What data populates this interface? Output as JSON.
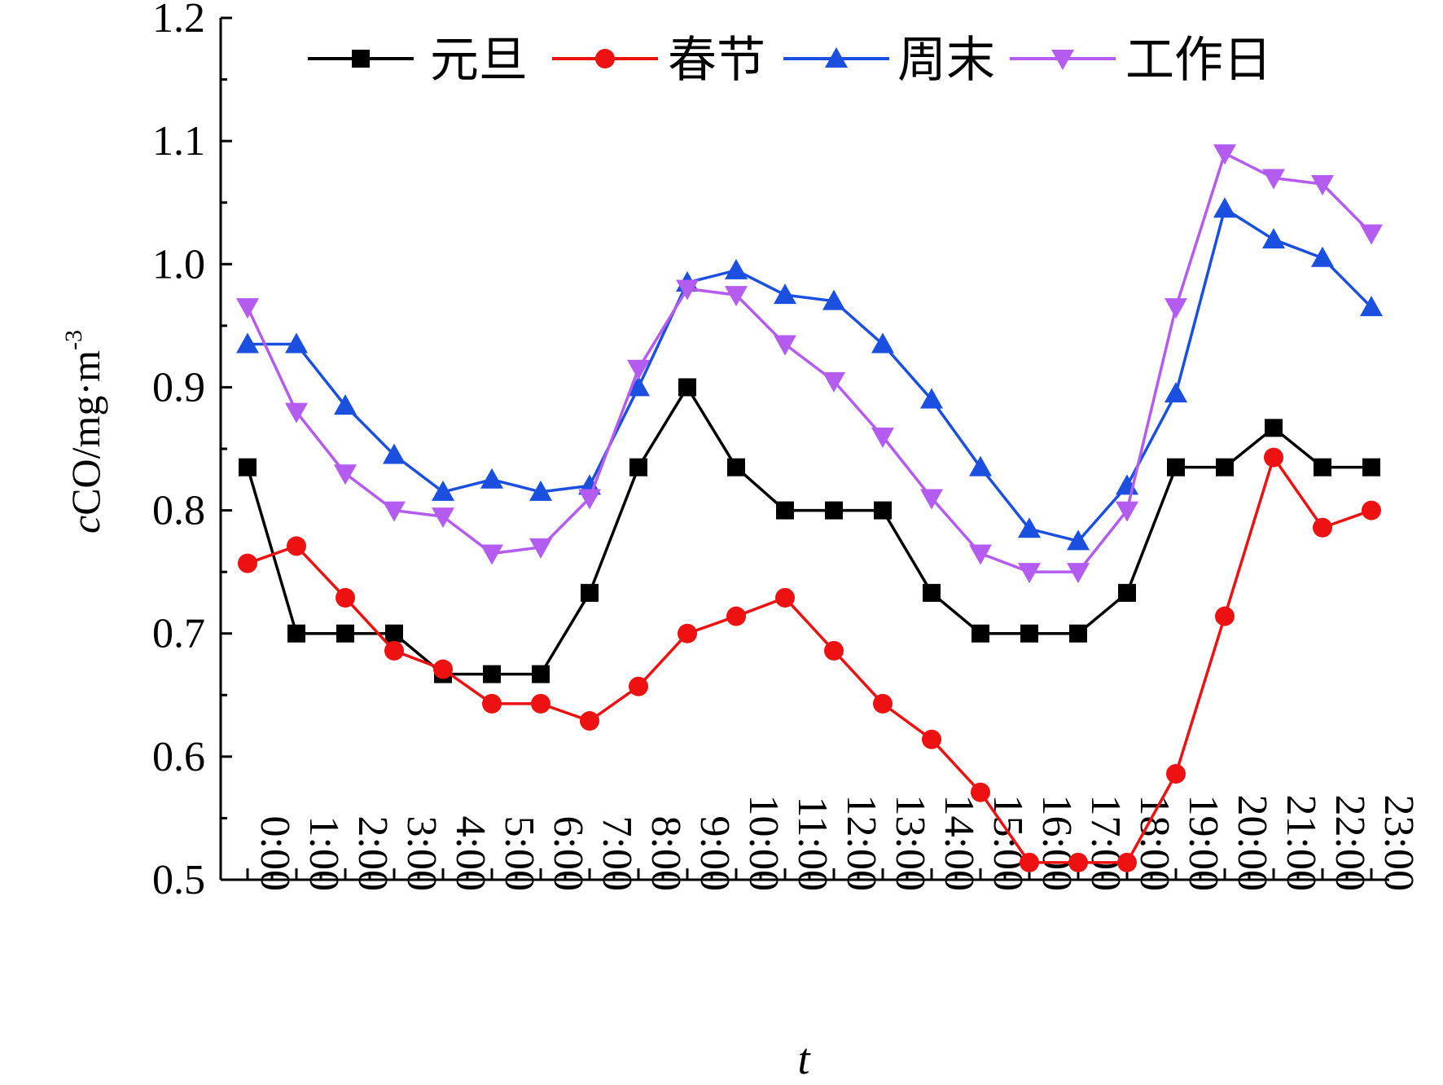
{
  "chart_data": {
    "type": "line",
    "title": "",
    "xlabel": "t",
    "ylabel": "cCO/mg·m-3",
    "ylabel_parts": {
      "italic": "c",
      "main": "CO/mg·m",
      "sup": "-3"
    },
    "categories": [
      "0:00",
      "1:00",
      "2:00",
      "3:00",
      "4:00",
      "5:00",
      "6:00",
      "7:00",
      "8:00",
      "9:00",
      "10:00",
      "11:00",
      "12:00",
      "13:00",
      "14:00",
      "15:00",
      "16:00",
      "17:00",
      "18:00",
      "19:00",
      "20:00",
      "21:00",
      "22:00",
      "23:00"
    ],
    "ylim": [
      0.5,
      1.2
    ],
    "yticks": [
      "0.5",
      "0.6",
      "0.7",
      "0.8",
      "0.9",
      "1.0",
      "1.1",
      "1.2"
    ],
    "grid": false,
    "legend_position": "top",
    "series": [
      {
        "name": "元旦",
        "color": "#000000",
        "marker": "square",
        "values": [
          0.835,
          0.7,
          0.7,
          0.7,
          0.667,
          0.667,
          0.667,
          0.733,
          0.835,
          0.9,
          0.835,
          0.8,
          0.8,
          0.8,
          0.733,
          0.7,
          0.7,
          0.7,
          0.733,
          0.835,
          0.835,
          0.867,
          0.835,
          0.835
        ]
      },
      {
        "name": "春节",
        "color": "#ee1111",
        "marker": "circle",
        "values": [
          0.757,
          0.771,
          0.729,
          0.686,
          0.671,
          0.643,
          0.643,
          0.629,
          0.657,
          0.7,
          0.714,
          0.729,
          0.686,
          0.643,
          0.614,
          0.571,
          0.514,
          0.514,
          0.514,
          0.586,
          0.714,
          0.843,
          0.786,
          0.8
        ]
      },
      {
        "name": "周末",
        "color": "#1a4fe0",
        "marker": "triangle-up",
        "values": [
          0.935,
          0.935,
          0.885,
          0.845,
          0.815,
          0.825,
          0.815,
          0.82,
          0.9,
          0.985,
          0.995,
          0.975,
          0.97,
          0.935,
          0.89,
          0.835,
          0.785,
          0.775,
          0.82,
          0.895,
          1.045,
          1.02,
          1.005,
          0.965
        ]
      },
      {
        "name": "工作日",
        "color": "#b45cf0",
        "marker": "triangle-down",
        "values": [
          0.965,
          0.88,
          0.83,
          0.8,
          0.795,
          0.765,
          0.77,
          0.81,
          0.915,
          0.98,
          0.975,
          0.935,
          0.905,
          0.86,
          0.81,
          0.765,
          0.75,
          0.75,
          0.8,
          0.965,
          1.09,
          1.07,
          1.065,
          1.025
        ]
      }
    ]
  }
}
